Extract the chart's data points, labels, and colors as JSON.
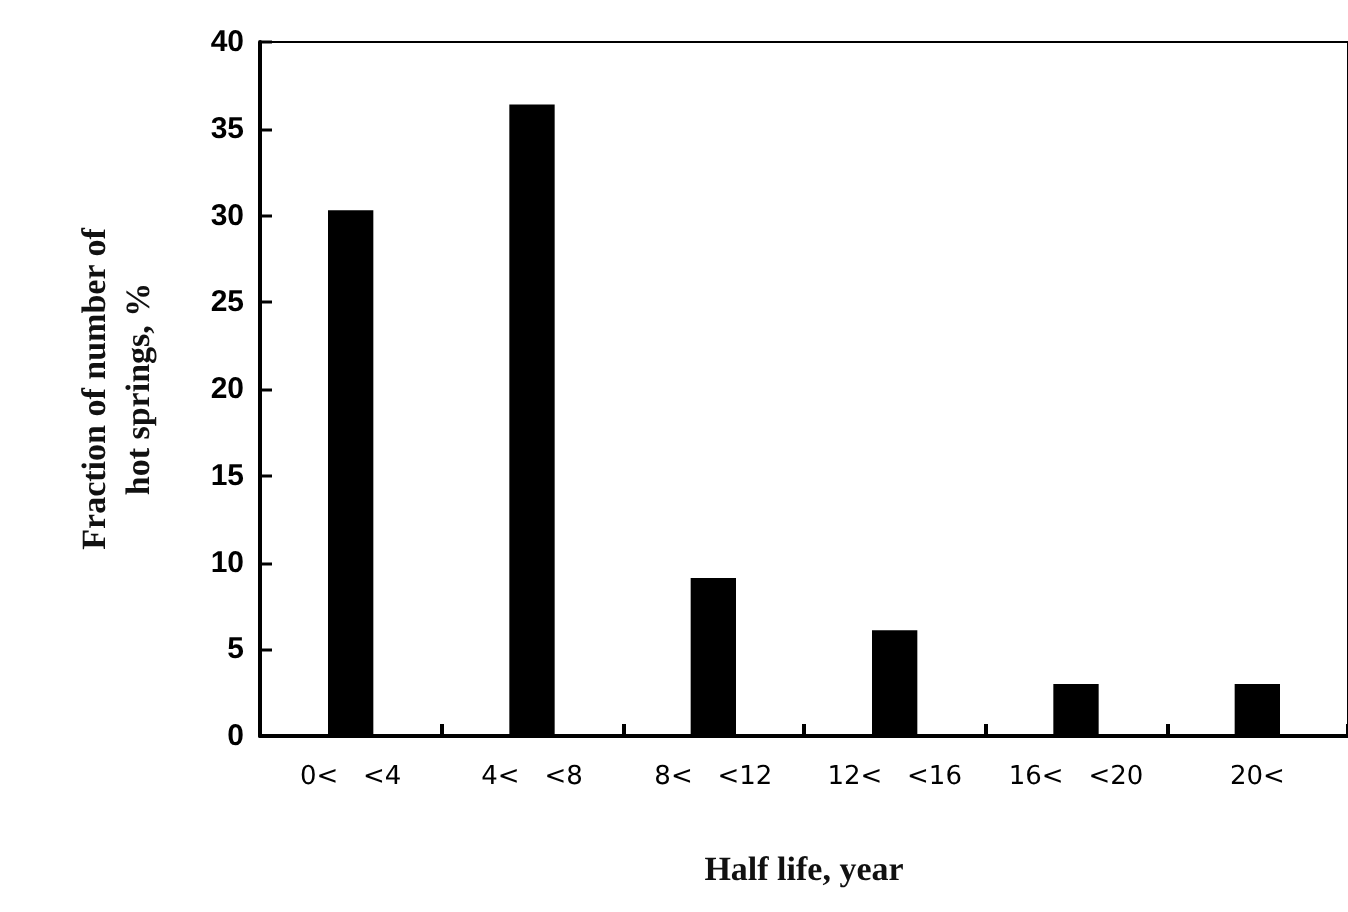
{
  "chart_data": {
    "type": "bar",
    "xlabel": "Half life, year",
    "ylabel": "Fraction of number of\nhot springs, %",
    "categories": [
      "0<   <4",
      "4<   <8",
      "8<   <12",
      "12<   <16",
      "16<   <20",
      "20<"
    ],
    "values": [
      30.3,
      36.4,
      9.1,
      6.1,
      3.0,
      3.0
    ],
    "color": "#000000",
    "ylim": [
      0,
      40
    ],
    "yticks": [
      0,
      5,
      10,
      15,
      20,
      25,
      30,
      35,
      40
    ],
    "grid": false
  }
}
